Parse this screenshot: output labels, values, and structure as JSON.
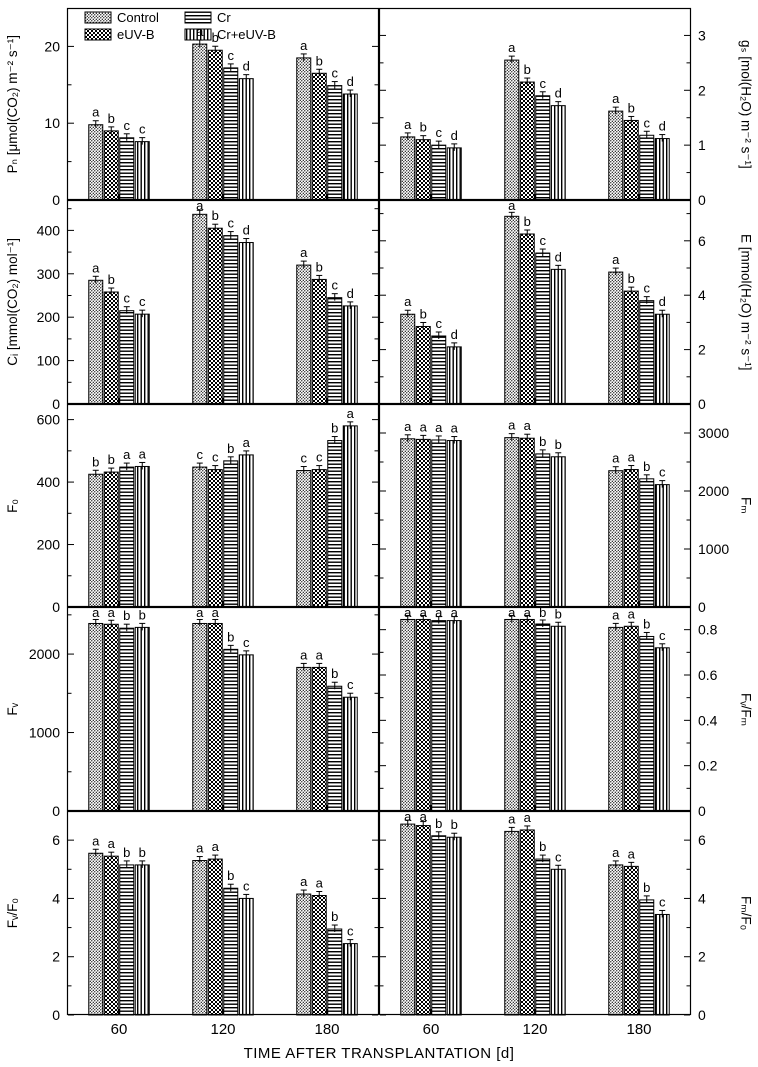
{
  "figure": {
    "x_axis_label": "TIME AFTER TRANSPLANTATION [d]"
  },
  "legend": {
    "items": [
      "Control",
      "eUV-B",
      "Cr",
      "Cr+eUV-B"
    ],
    "patterns": {
      "Control": "dense-dot-stipple",
      "eUV-B": "checkerboard",
      "Cr": "horizontal-stripes",
      "Cr+eUV-B": "vertical-stripes"
    },
    "position": "top-left-panel"
  },
  "categories": [
    "60",
    "120",
    "180"
  ],
  "chart_data": [
    {
      "type": "bar",
      "panel": "PN",
      "ylabel": "Pₙ [μmol(CO₂) m⁻² s⁻¹]",
      "axis_side": "left",
      "ymax": 25,
      "yticks": [
        0,
        10,
        20
      ],
      "series": [
        {
          "name": "Control",
          "values": [
            9.8,
            20.3,
            18.5
          ]
        },
        {
          "name": "eUV-B",
          "values": [
            9.0,
            19.5,
            16.5
          ]
        },
        {
          "name": "Cr",
          "values": [
            8.1,
            17.2,
            14.9
          ]
        },
        {
          "name": "Cr+eUV-B",
          "values": [
            7.6,
            15.8,
            13.8
          ]
        }
      ],
      "letters": [
        [
          "a",
          "b",
          "c",
          "c"
        ],
        [
          "a",
          "b",
          "c",
          "d"
        ],
        [
          "a",
          "b",
          "c",
          "d"
        ]
      ]
    },
    {
      "type": "bar",
      "panel": "gs",
      "ylabel": "gₛ [mol(H₂O) m⁻² s⁻¹]",
      "axis_side": "right",
      "ymax": 3.5,
      "yticks": [
        0,
        1,
        2,
        3
      ],
      "series": [
        {
          "name": "Control",
          "values": [
            1.15,
            2.55,
            1.62
          ]
        },
        {
          "name": "eUV-B",
          "values": [
            1.1,
            2.15,
            1.45
          ]
        },
        {
          "name": "Cr",
          "values": [
            1.0,
            1.9,
            1.18
          ]
        },
        {
          "name": "Cr+eUV-B",
          "values": [
            0.95,
            1.72,
            1.12
          ]
        }
      ],
      "letters": [
        [
          "a",
          "b",
          "c",
          "d"
        ],
        [
          "a",
          "b",
          "c",
          "d"
        ],
        [
          "a",
          "b",
          "c",
          "d"
        ]
      ]
    },
    {
      "type": "bar",
      "panel": "Ci",
      "ylabel": "Cᵢ [mmol(CO₂) mol⁻¹]",
      "axis_side": "left",
      "ymax": 470,
      "yticks": [
        0,
        100,
        200,
        300,
        400
      ],
      "series": [
        {
          "name": "Control",
          "values": [
            285,
            437,
            320
          ]
        },
        {
          "name": "eUV-B",
          "values": [
            258,
            405,
            287
          ]
        },
        {
          "name": "Cr",
          "values": [
            215,
            388,
            245
          ]
        },
        {
          "name": "Cr+eUV-B",
          "values": [
            207,
            372,
            226
          ]
        }
      ],
      "letters": [
        [
          "a",
          "b",
          "c",
          "c"
        ],
        [
          "a",
          "b",
          "c",
          "d"
        ],
        [
          "a",
          "b",
          "c",
          "d"
        ]
      ]
    },
    {
      "type": "bar",
      "panel": "E",
      "ylabel": "E [mmol(H₂O) m⁻² s⁻¹]",
      "axis_side": "right",
      "ymax": 7.5,
      "yticks": [
        0,
        2,
        4,
        6
      ],
      "series": [
        {
          "name": "Control",
          "values": [
            3.3,
            6.9,
            4.85
          ]
        },
        {
          "name": "eUV-B",
          "values": [
            2.85,
            6.25,
            4.15
          ]
        },
        {
          "name": "Cr",
          "values": [
            2.5,
            5.55,
            3.8
          ]
        },
        {
          "name": "Cr+eUV-B",
          "values": [
            2.1,
            4.95,
            3.3
          ]
        }
      ],
      "letters": [
        [
          "a",
          "b",
          "c",
          "d"
        ],
        [
          "a",
          "b",
          "c",
          "d"
        ],
        [
          "a",
          "b",
          "c",
          "d"
        ]
      ]
    },
    {
      "type": "bar",
      "panel": "F0",
      "ylabel": "F₀",
      "axis_side": "left",
      "ymax": 650,
      "yticks": [
        0,
        200,
        400,
        600
      ],
      "series": [
        {
          "name": "Control",
          "values": [
            425,
            448,
            437
          ]
        },
        {
          "name": "eUV-B",
          "values": [
            432,
            440,
            440
          ]
        },
        {
          "name": "Cr",
          "values": [
            448,
            468,
            533
          ]
        },
        {
          "name": "Cr+eUV-B",
          "values": [
            450,
            487,
            580
          ]
        }
      ],
      "letters": [
        [
          "b",
          "b",
          "a",
          "a"
        ],
        [
          "c",
          "c",
          "b",
          "a"
        ],
        [
          "c",
          "c",
          "b",
          "a"
        ]
      ]
    },
    {
      "type": "bar",
      "panel": "Fm",
      "ylabel": "Fₘ",
      "axis_side": "right",
      "ymax": 3500,
      "yticks": [
        0,
        1000,
        2000,
        3000
      ],
      "series": [
        {
          "name": "Control",
          "values": [
            2900,
            2920,
            2350
          ]
        },
        {
          "name": "eUV-B",
          "values": [
            2890,
            2910,
            2370
          ]
        },
        {
          "name": "Cr",
          "values": [
            2880,
            2640,
            2210
          ]
        },
        {
          "name": "Cr+eUV-B",
          "values": [
            2870,
            2590,
            2110
          ]
        }
      ],
      "letters": [
        [
          "a",
          "a",
          "a",
          "a"
        ],
        [
          "a",
          "a",
          "b",
          "b"
        ],
        [
          "a",
          "a",
          "b",
          "c"
        ]
      ]
    },
    {
      "type": "bar",
      "panel": "Fv",
      "ylabel": "Fᵥ",
      "axis_side": "left",
      "ymax": 2600,
      "yticks": [
        0,
        1000,
        2000
      ],
      "series": [
        {
          "name": "Control",
          "values": [
            2390,
            2390,
            1830
          ]
        },
        {
          "name": "eUV-B",
          "values": [
            2380,
            2390,
            1830
          ]
        },
        {
          "name": "Cr",
          "values": [
            2330,
            2060,
            1590
          ]
        },
        {
          "name": "Cr+eUV-B",
          "values": [
            2340,
            1990,
            1450
          ]
        }
      ],
      "letters": [
        [
          "a",
          "a",
          "b",
          "b"
        ],
        [
          "a",
          "a",
          "b",
          "c"
        ],
        [
          "a",
          "a",
          "b",
          "c"
        ]
      ]
    },
    {
      "type": "bar",
      "panel": "Fv/Fm",
      "ylabel": "Fᵥ/Fₘ",
      "axis_side": "right",
      "ymax": 0.9,
      "yticks": [
        0,
        0.2,
        0.4,
        0.6,
        0.8
      ],
      "series": [
        {
          "name": "Control",
          "values": [
            0.845,
            0.845,
            0.81
          ]
        },
        {
          "name": "eUV-B",
          "values": [
            0.845,
            0.845,
            0.815
          ]
        },
        {
          "name": "Cr",
          "values": [
            0.84,
            0.825,
            0.77
          ]
        },
        {
          "name": "Cr+eUV-B",
          "values": [
            0.84,
            0.815,
            0.72
          ]
        }
      ],
      "letters": [
        [
          "a",
          "a",
          "a",
          "a"
        ],
        [
          "a",
          "a",
          "b",
          "b"
        ],
        [
          "a",
          "a",
          "b",
          "c"
        ]
      ]
    },
    {
      "type": "bar",
      "panel": "Fv/F0",
      "ylabel": "Fᵥ/F₀",
      "axis_side": "left",
      "ymax": 7,
      "yticks": [
        0,
        2,
        4,
        6
      ],
      "series": [
        {
          "name": "Control",
          "values": [
            5.55,
            5.3,
            4.15
          ]
        },
        {
          "name": "eUV-B",
          "values": [
            5.45,
            5.35,
            4.1
          ]
        },
        {
          "name": "Cr",
          "values": [
            5.15,
            4.35,
            2.95
          ]
        },
        {
          "name": "Cr+eUV-B",
          "values": [
            5.15,
            4.0,
            2.45
          ]
        }
      ],
      "letters": [
        [
          "a",
          "a",
          "b",
          "b"
        ],
        [
          "a",
          "a",
          "b",
          "c"
        ],
        [
          "a",
          "a",
          "b",
          "c"
        ]
      ]
    },
    {
      "type": "bar",
      "panel": "Fm/F0",
      "ylabel": "Fₘ/F₀",
      "axis_side": "right",
      "ymax": 7,
      "yticks": [
        0,
        2,
        4,
        6
      ],
      "series": [
        {
          "name": "Control",
          "values": [
            6.55,
            6.3,
            5.15
          ]
        },
        {
          "name": "eUV-B",
          "values": [
            6.5,
            6.35,
            5.1
          ]
        },
        {
          "name": "Cr",
          "values": [
            6.15,
            5.35,
            3.95
          ]
        },
        {
          "name": "Cr+eUV-B",
          "values": [
            6.1,
            5.0,
            3.45
          ]
        }
      ],
      "letters": [
        [
          "a",
          "a",
          "b",
          "b"
        ],
        [
          "a",
          "a",
          "b",
          "c"
        ],
        [
          "a",
          "a",
          "b",
          "c"
        ]
      ]
    }
  ]
}
